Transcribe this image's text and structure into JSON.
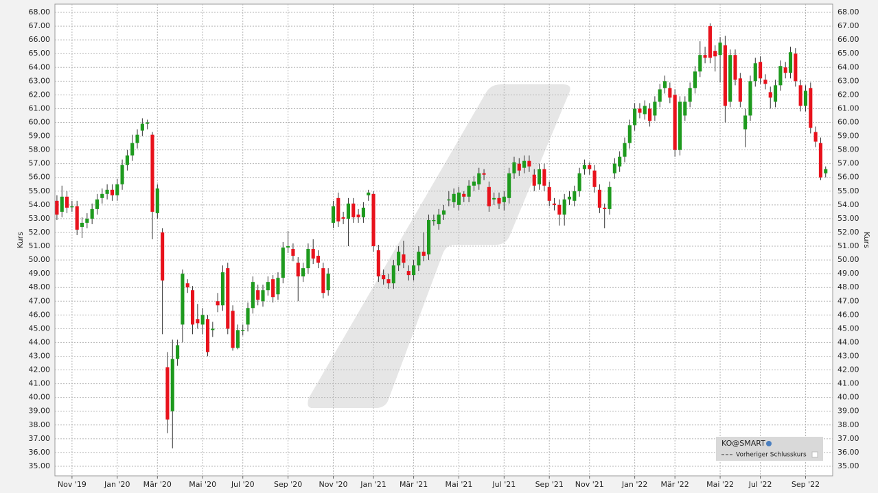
{
  "chart_data": {
    "type": "candlestick",
    "y_label": "Kurs",
    "up_color": "#1e9a1e",
    "down_color": "#e8121c",
    "grid": true,
    "legend": {
      "position": "lower right",
      "instrument": "KO@SMART",
      "reference_line": "Vorheriger Schlusskurs"
    },
    "ylim": [
      34.3,
      68.6
    ],
    "yticks": [
      {
        "value": 35,
        "label": "35.00"
      },
      {
        "value": 36,
        "label": "36.00"
      },
      {
        "value": 37,
        "label": "37.00"
      },
      {
        "value": 38,
        "label": "38.00"
      },
      {
        "value": 39,
        "label": "39.00"
      },
      {
        "value": 40,
        "label": "40.00"
      },
      {
        "value": 41,
        "label": "41.00"
      },
      {
        "value": 42,
        "label": "42.00"
      },
      {
        "value": 43,
        "label": "43.00"
      },
      {
        "value": 44,
        "label": "44.00"
      },
      {
        "value": 45,
        "label": "45.00"
      },
      {
        "value": 46,
        "label": "46.00"
      },
      {
        "value": 47,
        "label": "47.00"
      },
      {
        "value": 48,
        "label": "48.00"
      },
      {
        "value": 49,
        "label": "49.00"
      },
      {
        "value": 50,
        "label": "50.00"
      },
      {
        "value": 51,
        "label": "51.00"
      },
      {
        "value": 52,
        "label": "52.00"
      },
      {
        "value": 53,
        "label": "53.00"
      },
      {
        "value": 54,
        "label": "54.00"
      },
      {
        "value": 55,
        "label": "55.00"
      },
      {
        "value": 56,
        "label": "56.00"
      },
      {
        "value": 57,
        "label": "57.00"
      },
      {
        "value": 58,
        "label": "58.00"
      },
      {
        "value": 59,
        "label": "59.00"
      },
      {
        "value": 60,
        "label": "60.00"
      },
      {
        "value": 61,
        "label": "61.00"
      },
      {
        "value": 62,
        "label": "62.00"
      },
      {
        "value": 63,
        "label": "63.00"
      },
      {
        "value": 64,
        "label": "64.00"
      },
      {
        "value": 65,
        "label": "65.00"
      },
      {
        "value": 66,
        "label": "66.00"
      },
      {
        "value": 67,
        "label": "67.00"
      },
      {
        "value": 68,
        "label": "68.00"
      }
    ],
    "xticks": [
      {
        "value": 3,
        "label": "Nov '19"
      },
      {
        "value": 12,
        "label": "Jan '20"
      },
      {
        "value": 20,
        "label": "Mär '20"
      },
      {
        "value": 29,
        "label": "Mai '20"
      },
      {
        "value": 37,
        "label": "Jul '20"
      },
      {
        "value": 46,
        "label": "Sep '20"
      },
      {
        "value": 55,
        "label": "Nov '20"
      },
      {
        "value": 63,
        "label": "Jan '21"
      },
      {
        "value": 71,
        "label": "Mär '21"
      },
      {
        "value": 80,
        "label": "Mai '21"
      },
      {
        "value": 89,
        "label": "Jul '21"
      },
      {
        "value": 98,
        "label": "Sep '21"
      },
      {
        "value": 106,
        "label": "Nov '21"
      },
      {
        "value": 115,
        "label": "Jan '22"
      },
      {
        "value": 123,
        "label": "Mär '22"
      },
      {
        "value": 132,
        "label": "Mai '22"
      },
      {
        "value": 140,
        "label": "Jul '22"
      },
      {
        "value": 149,
        "label": "Sep '22"
      }
    ],
    "ohlc": [
      [
        54.3,
        54.7,
        52.9,
        53.3
      ],
      [
        53.5,
        55.4,
        53.1,
        54.6
      ],
      [
        54.6,
        55.0,
        53.4,
        53.8
      ],
      [
        53.9,
        54.3,
        53.5,
        53.9
      ],
      [
        53.9,
        54.3,
        51.8,
        52.2
      ],
      [
        52.4,
        53.1,
        51.6,
        52.7
      ],
      [
        52.7,
        53.4,
        52.3,
        53.0
      ],
      [
        53.0,
        54.1,
        52.6,
        53.7
      ],
      [
        53.7,
        54.8,
        53.3,
        54.4
      ],
      [
        54.5,
        55.2,
        54.1,
        54.8
      ],
      [
        54.8,
        55.5,
        54.4,
        55.1
      ],
      [
        55.1,
        55.5,
        54.3,
        54.7
      ],
      [
        54.7,
        55.9,
        54.3,
        55.5
      ],
      [
        55.5,
        57.3,
        55.1,
        56.9
      ],
      [
        56.9,
        58.0,
        56.5,
        57.6
      ],
      [
        57.6,
        59.1,
        57.2,
        58.5
      ],
      [
        58.5,
        59.5,
        58.1,
        59.1
      ],
      [
        59.4,
        60.3,
        59.0,
        59.9
      ],
      [
        59.9,
        60.2,
        59.5,
        60.0
      ],
      [
        59.1,
        59.3,
        51.5,
        53.5
      ],
      [
        53.4,
        55.5,
        53.0,
        55.2
      ],
      [
        52.0,
        52.3,
        44.6,
        48.5
      ],
      [
        42.2,
        43.3,
        37.4,
        38.4
      ],
      [
        39.0,
        44.2,
        36.3,
        42.8
      ],
      [
        42.8,
        44.2,
        42.3,
        43.8
      ],
      [
        45.3,
        49.3,
        44.0,
        49.0
      ],
      [
        48.3,
        48.6,
        47.6,
        48.0
      ],
      [
        47.8,
        48.1,
        44.6,
        45.3
      ],
      [
        45.7,
        46.8,
        45.0,
        45.4
      ],
      [
        45.3,
        46.5,
        44.6,
        46.0
      ],
      [
        45.7,
        46.0,
        43.0,
        43.3
      ],
      [
        44.9,
        45.5,
        44.4,
        45.0
      ],
      [
        47.0,
        47.6,
        46.2,
        46.7
      ],
      [
        46.7,
        49.6,
        46.3,
        49.1
      ],
      [
        49.4,
        49.8,
        44.6,
        45.0
      ],
      [
        46.3,
        46.7,
        43.4,
        43.6
      ],
      [
        43.6,
        45.3,
        43.5,
        44.9
      ],
      [
        44.9,
        45.3,
        44.5,
        44.9
      ],
      [
        45.3,
        46.9,
        44.8,
        46.5
      ],
      [
        46.5,
        48.8,
        46.1,
        48.4
      ],
      [
        47.8,
        48.2,
        46.7,
        47.1
      ],
      [
        47.0,
        48.2,
        46.6,
        47.8
      ],
      [
        47.8,
        48.8,
        47.4,
        48.4
      ],
      [
        48.6,
        48.9,
        46.9,
        47.3
      ],
      [
        47.5,
        49.1,
        47.1,
        48.7
      ],
      [
        48.7,
        51.3,
        48.3,
        50.9
      ],
      [
        50.9,
        52.1,
        50.5,
        51.0
      ],
      [
        50.8,
        51.2,
        49.9,
        50.3
      ],
      [
        49.8,
        50.2,
        47.0,
        48.8
      ],
      [
        48.8,
        49.8,
        48.4,
        49.4
      ],
      [
        49.4,
        51.2,
        49.0,
        50.8
      ],
      [
        50.8,
        51.5,
        49.7,
        50.1
      ],
      [
        50.3,
        50.7,
        49.4,
        49.8
      ],
      [
        49.4,
        49.8,
        47.2,
        47.6
      ],
      [
        47.8,
        49.4,
        47.4,
        49.0
      ],
      [
        52.7,
        54.3,
        52.3,
        53.9
      ],
      [
        54.5,
        54.9,
        52.4,
        52.8
      ],
      [
        53.1,
        53.5,
        52.6,
        53.0
      ],
      [
        53.0,
        54.5,
        51.0,
        54.1
      ],
      [
        54.1,
        54.5,
        52.7,
        53.1
      ],
      [
        53.3,
        53.7,
        52.7,
        53.1
      ],
      [
        53.1,
        54.2,
        52.7,
        53.8
      ],
      [
        54.7,
        55.1,
        54.3,
        54.9
      ],
      [
        54.8,
        55.0,
        50.6,
        51.0
      ],
      [
        50.7,
        51.1,
        48.4,
        48.8
      ],
      [
        48.9,
        49.3,
        48.2,
        48.6
      ],
      [
        48.6,
        49.0,
        47.9,
        48.3
      ],
      [
        48.3,
        50.0,
        47.9,
        49.6
      ],
      [
        49.6,
        51.0,
        49.2,
        50.6
      ],
      [
        50.4,
        51.4,
        49.4,
        49.8
      ],
      [
        49.2,
        49.6,
        48.5,
        48.9
      ],
      [
        48.9,
        50.0,
        48.5,
        49.6
      ],
      [
        49.6,
        51.0,
        49.2,
        50.6
      ],
      [
        50.6,
        52.0,
        49.9,
        50.3
      ],
      [
        50.4,
        53.3,
        50.0,
        52.9
      ],
      [
        52.9,
        53.3,
        52.5,
        52.9
      ],
      [
        52.6,
        53.7,
        52.2,
        53.3
      ],
      [
        53.3,
        54.0,
        52.9,
        53.6
      ],
      [
        54.4,
        55.0,
        53.9,
        54.4
      ],
      [
        54.2,
        55.2,
        53.8,
        54.8
      ],
      [
        54.0,
        55.3,
        53.6,
        54.9
      ],
      [
        54.8,
        55.0,
        54.2,
        54.6
      ],
      [
        54.6,
        55.8,
        54.2,
        55.4
      ],
      [
        55.4,
        56.1,
        55.0,
        55.7
      ],
      [
        55.5,
        56.7,
        55.1,
        56.3
      ],
      [
        56.3,
        56.6,
        55.8,
        56.2
      ],
      [
        55.3,
        55.7,
        53.5,
        53.9
      ],
      [
        54.4,
        54.9,
        54.0,
        54.5
      ],
      [
        54.5,
        54.9,
        53.7,
        54.1
      ],
      [
        54.2,
        55.0,
        53.6,
        54.6
      ],
      [
        54.5,
        56.7,
        54.1,
        56.3
      ],
      [
        56.3,
        57.5,
        55.9,
        57.1
      ],
      [
        57.0,
        57.4,
        56.1,
        56.5
      ],
      [
        56.7,
        57.6,
        56.3,
        57.2
      ],
      [
        57.2,
        57.6,
        56.4,
        56.8
      ],
      [
        56.2,
        56.6,
        55.0,
        55.4
      ],
      [
        55.5,
        57.0,
        55.1,
        56.6
      ],
      [
        56.6,
        57.0,
        55.0,
        55.4
      ],
      [
        55.3,
        55.7,
        53.9,
        54.3
      ],
      [
        54.1,
        54.5,
        53.6,
        54.0
      ],
      [
        54.0,
        54.4,
        52.5,
        53.3
      ],
      [
        53.3,
        54.8,
        52.5,
        54.4
      ],
      [
        54.4,
        55.0,
        54.0,
        54.6
      ],
      [
        54.3,
        55.4,
        53.9,
        55.0
      ],
      [
        55.0,
        56.7,
        54.6,
        56.3
      ],
      [
        56.6,
        57.3,
        56.2,
        56.9
      ],
      [
        56.9,
        57.1,
        56.2,
        56.6
      ],
      [
        56.5,
        56.9,
        54.9,
        55.3
      ],
      [
        55.1,
        55.5,
        53.4,
        53.8
      ],
      [
        53.8,
        54.1,
        52.3,
        53.7
      ],
      [
        53.7,
        55.7,
        53.3,
        55.3
      ],
      [
        56.3,
        57.4,
        55.9,
        57.0
      ],
      [
        56.8,
        57.9,
        56.4,
        57.5
      ],
      [
        57.5,
        58.9,
        57.1,
        58.5
      ],
      [
        58.5,
        60.2,
        58.1,
        59.8
      ],
      [
        59.8,
        61.4,
        59.4,
        61.0
      ],
      [
        61.0,
        61.4,
        60.3,
        60.7
      ],
      [
        60.6,
        61.6,
        60.2,
        61.2
      ],
      [
        61.0,
        61.4,
        59.7,
        60.1
      ],
      [
        60.5,
        61.9,
        60.1,
        61.5
      ],
      [
        61.5,
        62.8,
        61.1,
        62.4
      ],
      [
        62.5,
        63.4,
        62.1,
        63.0
      ],
      [
        62.5,
        62.9,
        61.4,
        61.8
      ],
      [
        62.0,
        62.4,
        57.5,
        58.0
      ],
      [
        58.0,
        61.9,
        57.6,
        61.5
      ],
      [
        60.5,
        61.9,
        60.1,
        61.5
      ],
      [
        61.5,
        62.9,
        61.1,
        62.5
      ],
      [
        62.5,
        64.1,
        62.1,
        63.7
      ],
      [
        63.7,
        65.9,
        63.3,
        64.9
      ],
      [
        64.9,
        65.5,
        64.3,
        64.7
      ],
      [
        67.0,
        67.2,
        64.3,
        64.7
      ],
      [
        65.2,
        65.6,
        63.7,
        64.8
      ],
      [
        64.9,
        66.2,
        62.9,
        65.8
      ],
      [
        65.6,
        66.3,
        60.0,
        61.2
      ],
      [
        61.5,
        65.3,
        61.1,
        64.9
      ],
      [
        64.9,
        65.3,
        62.7,
        63.1
      ],
      [
        63.2,
        63.6,
        61.1,
        61.5
      ],
      [
        59.5,
        61.0,
        58.2,
        60.5
      ],
      [
        60.5,
        63.4,
        60.1,
        63.0
      ],
      [
        63.0,
        64.7,
        62.6,
        64.3
      ],
      [
        64.4,
        64.8,
        62.8,
        63.2
      ],
      [
        63.1,
        63.5,
        62.4,
        62.8
      ],
      [
        62.2,
        62.6,
        61.0,
        61.8
      ],
      [
        61.5,
        63.1,
        61.1,
        62.7
      ],
      [
        62.7,
        64.5,
        62.3,
        64.1
      ],
      [
        64.0,
        64.4,
        63.2,
        63.6
      ],
      [
        63.6,
        65.5,
        63.2,
        65.1
      ],
      [
        65.0,
        65.4,
        62.6,
        63.0
      ],
      [
        62.7,
        63.1,
        60.8,
        61.2
      ],
      [
        61.2,
        62.7,
        60.8,
        62.3
      ],
      [
        62.5,
        62.9,
        59.2,
        59.6
      ],
      [
        59.3,
        59.7,
        58.2,
        58.6
      ],
      [
        58.5,
        58.9,
        55.8,
        56.0
      ],
      [
        56.3,
        56.8,
        56.0,
        56.6
      ]
    ]
  }
}
